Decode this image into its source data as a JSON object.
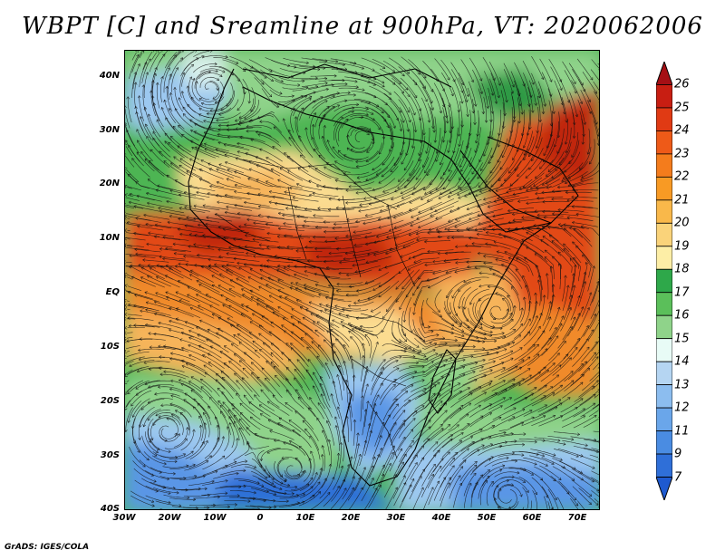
{
  "title": "WBPT [C] and Sreamline at 900hPa, VT: 2020062006",
  "credit": "GrADS: IGES/COLA",
  "map": {
    "lat_labels": [
      "40N",
      "30N",
      "20N",
      "10N",
      "EQ",
      "10S",
      "20S",
      "30S",
      "40S"
    ],
    "lon_labels": [
      "30W",
      "20W",
      "10W",
      "0",
      "10E",
      "20E",
      "30E",
      "40E",
      "50E",
      "60E",
      "70E"
    ],
    "lat_range": [
      -40,
      45
    ],
    "lon_range": [
      -30,
      75
    ]
  },
  "colorbar": {
    "labels": [
      "26",
      "25",
      "24",
      "23",
      "22",
      "21",
      "20",
      "19",
      "18",
      "17",
      "16",
      "15",
      "14",
      "13",
      "12",
      "11",
      "9",
      "7"
    ],
    "colors": [
      "#a50f15",
      "#c81e12",
      "#e03a14",
      "#ee5a18",
      "#f47c1c",
      "#f89a24",
      "#f9b84a",
      "#fad37a",
      "#fdeea6",
      "#2ea84a",
      "#5bbf5a",
      "#8fd38a",
      "#e8fbf6",
      "#b5d5f2",
      "#8cbdef",
      "#6aa6ea",
      "#4a8ce2",
      "#2f6fd8",
      "#1e5ad0"
    ]
  },
  "field_colors": {
    "very_hot": "#c0260f",
    "hot": "#e24a15",
    "warm_orange": "#f08a2a",
    "warm": "#f6b45a",
    "cream": "#fbdc90",
    "light_green": "#8fd38a",
    "green": "#4eb552",
    "dark_green": "#2e9a44",
    "light_blue": "#9cc8f0",
    "blue": "#5a96e6",
    "dark_blue": "#2f6fd8",
    "pale": "#d8f0ea"
  }
}
